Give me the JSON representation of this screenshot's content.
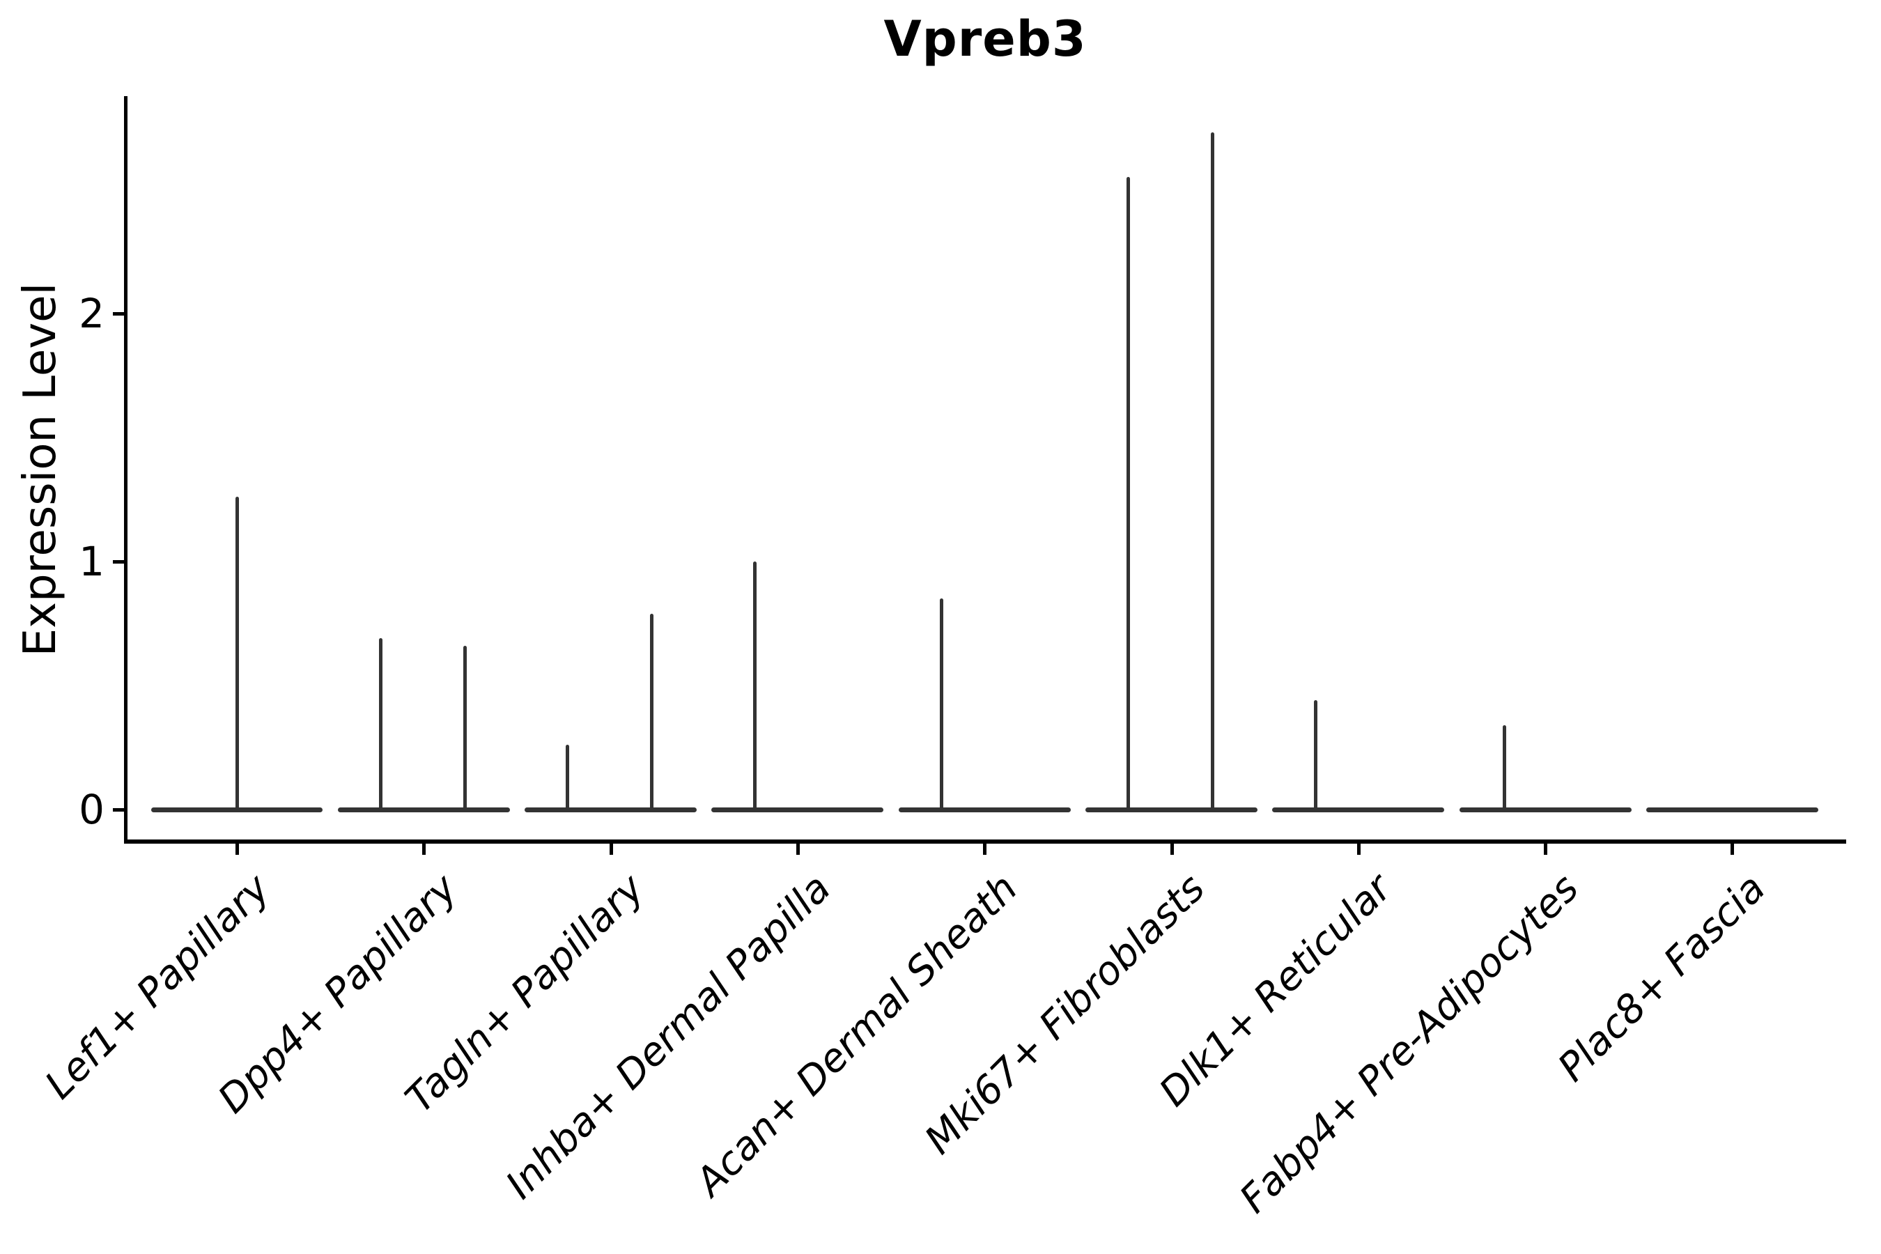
{
  "page": {
    "background": "#ffffff"
  },
  "chart_data": {
    "type": "violin",
    "title": "Vpreb3",
    "xlabel": "",
    "ylabel": "Expression Level",
    "yticks": [
      0,
      1,
      2
    ],
    "ylim": [
      -0.13,
      2.88
    ],
    "grid": false,
    "legend": "none",
    "ink_color": "#000000",
    "violin_color": "#333333",
    "violin_body_width_frac": 0.92,
    "categories": [
      "Lef1+ Papillary",
      "Dpp4+ Papillary",
      "Tagln+ Papillary",
      "Inhba+ Dermal Papilla",
      "Acan+ Dermal Sheath",
      "Mki67+ Fibroblasts",
      "Dlk1+ Reticular",
      "Fabp4+ Pre-Adipocytes",
      "Plac8+ Fascia"
    ],
    "violins": [
      {
        "category": "Lef1+ Papillary",
        "zero_body": true,
        "spikes": [
          {
            "offset": 0.0,
            "value": 1.26
          }
        ]
      },
      {
        "category": "Dpp4+ Papillary",
        "zero_body": true,
        "spikes": [
          {
            "offset": -0.23,
            "value": 0.69
          },
          {
            "offset": 0.22,
            "value": 0.66
          }
        ]
      },
      {
        "category": "Tagln+ Papillary",
        "zero_body": true,
        "spikes": [
          {
            "offset": -0.23,
            "value": 0.26
          },
          {
            "offset": 0.22,
            "value": 0.79
          }
        ]
      },
      {
        "category": "Inhba+ Dermal Papilla",
        "zero_body": true,
        "spikes": [
          {
            "offset": -0.23,
            "value": 1.0
          }
        ]
      },
      {
        "category": "Acan+ Dermal Sheath",
        "zero_body": true,
        "spikes": [
          {
            "offset": -0.23,
            "value": 0.85
          }
        ]
      },
      {
        "category": "Mki67+ Fibroblasts",
        "zero_body": true,
        "spikes": [
          {
            "offset": -0.23,
            "value": 2.55
          },
          {
            "offset": 0.22,
            "value": 2.73
          }
        ]
      },
      {
        "category": "Dlk1+ Reticular",
        "zero_body": true,
        "spikes": [
          {
            "offset": -0.23,
            "value": 0.44
          }
        ]
      },
      {
        "category": "Fabp4+ Pre-Adipocytes",
        "zero_body": true,
        "spikes": [
          {
            "offset": -0.22,
            "value": 0.34
          }
        ]
      },
      {
        "category": "Plac8+ Fascia",
        "zero_body": true,
        "spikes": []
      }
    ]
  }
}
